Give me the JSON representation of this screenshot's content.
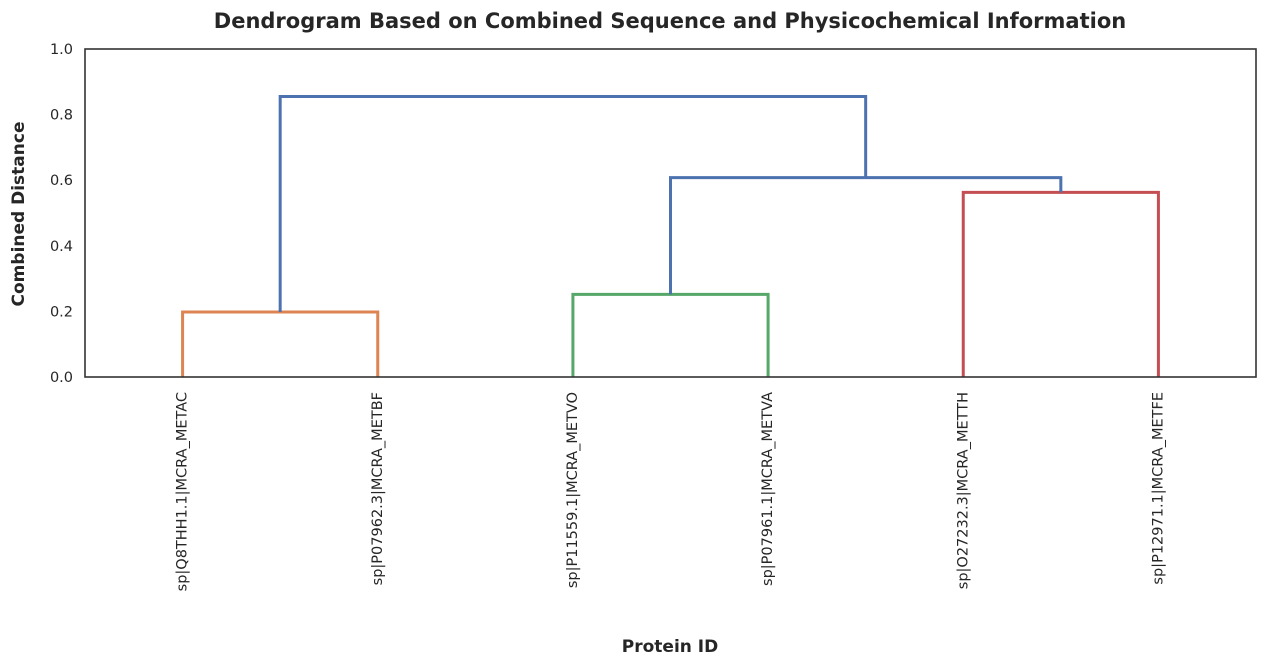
{
  "chart_data": {
    "type": "dendrogram",
    "title": "Dendrogram Based on Combined Sequence and Physicochemical Information",
    "xlabel": "Protein ID",
    "ylabel": "Combined Distance",
    "ylim": [
      0,
      1.0
    ],
    "yticks": [
      "0.0",
      "0.2",
      "0.4",
      "0.6",
      "0.8",
      "1.0"
    ],
    "leaves": [
      "sp|Q8THH1.1|MCRA_METAC",
      "sp|P07962.3|MCRA_METBF",
      "sp|P11559.1|MCRA_METVO",
      "sp|P07961.1|MCRA_METVA",
      "sp|O27232.3|MCRA_METTH",
      "sp|P12971.1|MCRA_METFE"
    ],
    "merges": [
      {
        "left": 0,
        "right": 1,
        "height": 0.198,
        "color": "#dd8452"
      },
      {
        "left": 2,
        "right": 3,
        "height": 0.252,
        "color": "#55a868"
      },
      {
        "left": 4,
        "right": 5,
        "height": 0.563,
        "color": "#c44e52"
      },
      {
        "left": 7,
        "right": 8,
        "height": 0.608,
        "color": "#4c72b0"
      },
      {
        "left": 6,
        "right": 9,
        "height": 0.855,
        "color": "#4c72b0"
      }
    ],
    "grid": false,
    "legend": "none"
  }
}
